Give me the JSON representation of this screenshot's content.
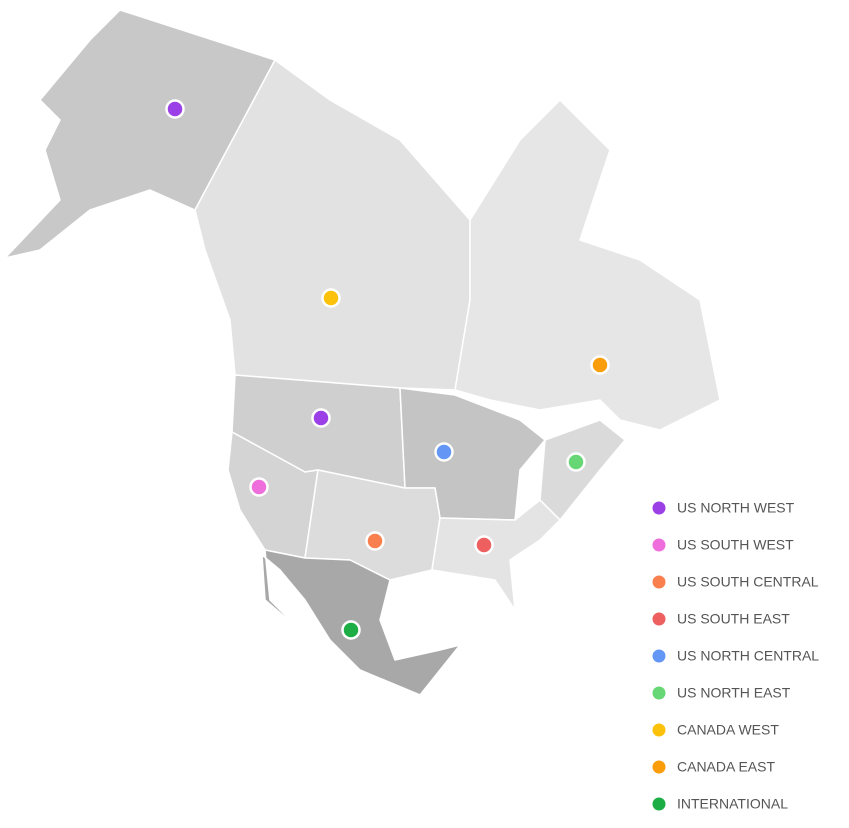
{
  "legend": [
    {
      "label": "US NORTH WEST",
      "color": "#9b3fe6"
    },
    {
      "label": "US SOUTH WEST",
      "color": "#ee6fdc"
    },
    {
      "label": "US SOUTH CENTRAL",
      "color": "#f97f4f"
    },
    {
      "label": "US SOUTH EAST",
      "color": "#ee5f5f"
    },
    {
      "label": "US NORTH CENTRAL",
      "color": "#6496f5"
    },
    {
      "label": "US NORTH EAST",
      "color": "#67d674"
    },
    {
      "label": "CANADA WEST",
      "color": "#fcc10a"
    },
    {
      "label": "CANADA EAST",
      "color": "#fa9d0a"
    },
    {
      "label": "INTERNATIONAL",
      "color": "#1cae45"
    }
  ]
}
